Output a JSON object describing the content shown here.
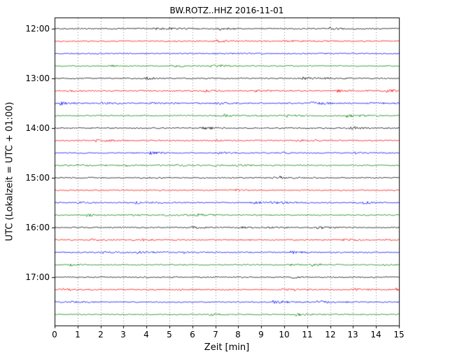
{
  "chart_data": {
    "type": "line",
    "variant": "seismogram-helicorder-dayplot",
    "title": "BW.ROTZ..HHZ 2016-11-01",
    "station": "BW.ROTZ..HHZ",
    "date": "2016-11-01",
    "xlabel": "Zeit [min]",
    "ylabel": "UTC (Lokalzeit = UTC + 01:00)",
    "xlim": [
      0,
      15
    ],
    "x_ticks": [
      "0",
      "1",
      "2",
      "3",
      "4",
      "5",
      "6",
      "7",
      "8",
      "9",
      "10",
      "11",
      "12",
      "13",
      "14",
      "15"
    ],
    "y_tick_labels": [
      "12:00",
      "13:00",
      "14:00",
      "15:00",
      "16:00",
      "17:00"
    ],
    "minutes_per_trace": 15,
    "num_traces": 24,
    "grid": "vertical-dotted",
    "legend": "none",
    "color_cycle": [
      "#000000",
      "#ff0000",
      "#0000ff",
      "#008000"
    ],
    "traces": [
      {
        "start": "12:00",
        "color": "#000000"
      },
      {
        "start": "12:15",
        "color": "#ff0000"
      },
      {
        "start": "12:30",
        "color": "#0000ff"
      },
      {
        "start": "12:45",
        "color": "#008000"
      },
      {
        "start": "13:00",
        "color": "#000000"
      },
      {
        "start": "13:15",
        "color": "#ff0000"
      },
      {
        "start": "13:30",
        "color": "#0000ff"
      },
      {
        "start": "13:45",
        "color": "#008000"
      },
      {
        "start": "14:00",
        "color": "#000000"
      },
      {
        "start": "14:15",
        "color": "#ff0000"
      },
      {
        "start": "14:30",
        "color": "#0000ff"
      },
      {
        "start": "14:45",
        "color": "#008000"
      },
      {
        "start": "15:00",
        "color": "#000000"
      },
      {
        "start": "15:15",
        "color": "#ff0000"
      },
      {
        "start": "15:30",
        "color": "#0000ff"
      },
      {
        "start": "15:45",
        "color": "#008000"
      },
      {
        "start": "16:00",
        "color": "#000000"
      },
      {
        "start": "16:15",
        "color": "#ff0000"
      },
      {
        "start": "16:30",
        "color": "#0000ff"
      },
      {
        "start": "16:45",
        "color": "#008000"
      },
      {
        "start": "17:00",
        "color": "#000000"
      },
      {
        "start": "17:15",
        "color": "#ff0000"
      },
      {
        "start": "17:30",
        "color": "#0000ff"
      },
      {
        "start": "17:45",
        "color": "#008000"
      }
    ],
    "signal": "flat low-amplitude background noise on every trace; no visible seismic events"
  }
}
